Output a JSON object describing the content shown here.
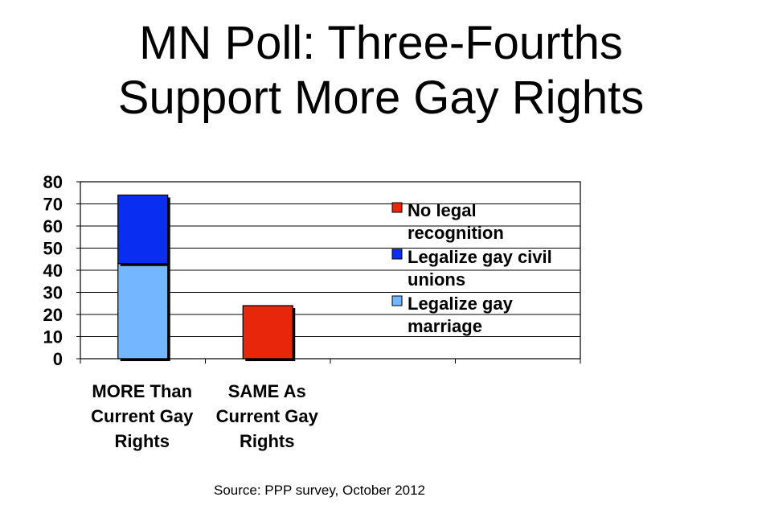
{
  "title_lines": [
    "MN Poll:  Three-Fourths",
    "Support More Gay Rights"
  ],
  "source": "Source: PPP survey, October 2012",
  "colors": {
    "no_legal": "#e8260c",
    "civil_unions": "#0a2ef0",
    "marriage": "#74b6ff"
  },
  "chart_data": {
    "type": "bar",
    "stacked": true,
    "categories": [
      [
        "MORE Than",
        "Current Gay",
        "Rights"
      ],
      [
        "SAME As",
        "Current Gay",
        "Rights"
      ],
      [
        ""
      ],
      [
        ""
      ]
    ],
    "series": [
      {
        "name": "Legalize gay marriage",
        "legend_lines": [
          "Legalize gay",
          "marriage"
        ],
        "color": "#74b6ff",
        "values": [
          43,
          0,
          0,
          0
        ]
      },
      {
        "name": "Legalize gay civil unions",
        "legend_lines": [
          "Legalize gay civil",
          "unions"
        ],
        "color": "#0a2ef0",
        "values": [
          31,
          0,
          0,
          0
        ]
      },
      {
        "name": "No legal recognition",
        "legend_lines": [
          "No legal",
          "recognition"
        ],
        "color": "#e8260c",
        "values": [
          0,
          24,
          0,
          0
        ]
      }
    ],
    "legend_order": [
      2,
      1,
      0
    ],
    "yticks": [
      0,
      10,
      20,
      30,
      40,
      50,
      60,
      70,
      80
    ],
    "ylim": [
      0,
      80
    ],
    "grid": true,
    "legend_position": "right"
  }
}
